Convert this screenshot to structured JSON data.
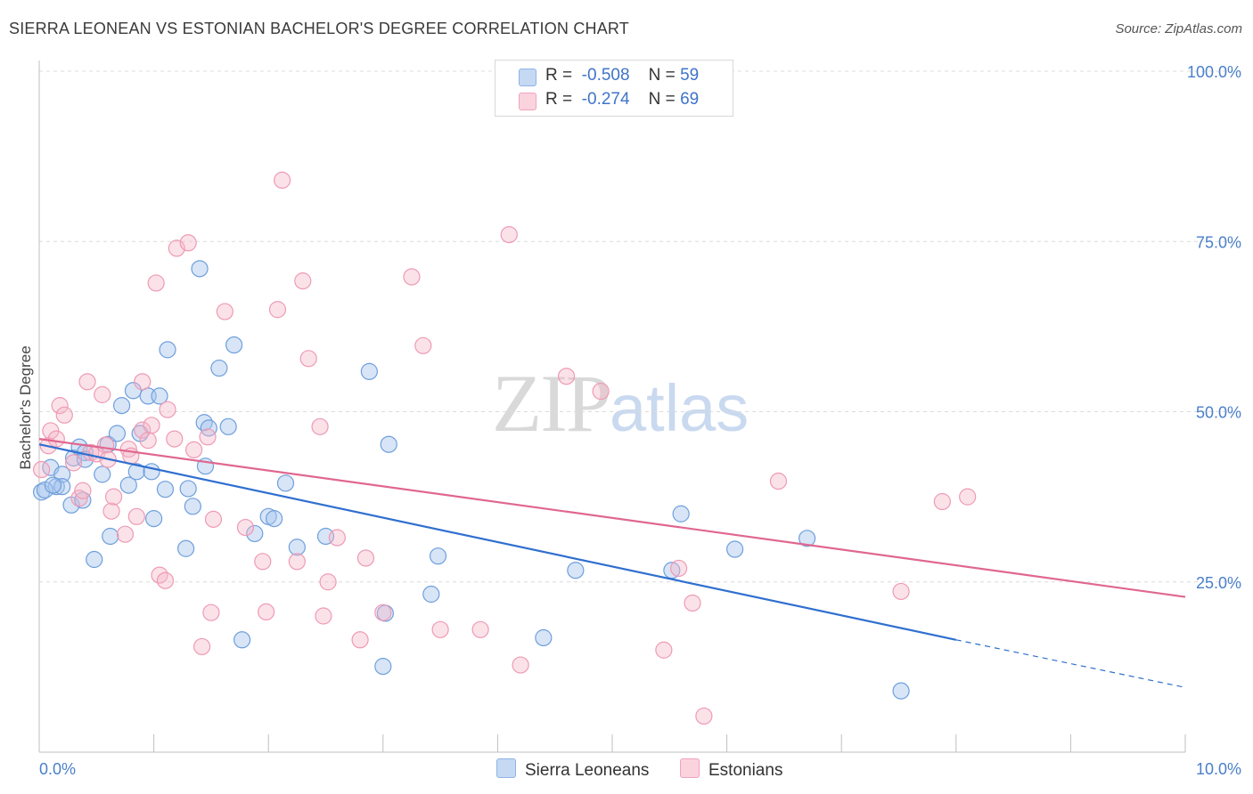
{
  "header": {
    "title": "SIERRA LEONEAN VS ESTONIAN BACHELOR'S DEGREE CORRELATION CHART",
    "source": "Source: ZipAtlas.com"
  },
  "watermark": {
    "zip": "ZIP",
    "atlas": "atlas"
  },
  "legend": {
    "r_label": "R =",
    "n_label": "N =",
    "rows": [
      {
        "r": "-0.508",
        "n": "59",
        "color": "#a8c6ee"
      },
      {
        "r": "-0.274",
        "n": "69",
        "color": "#f4b6c8"
      }
    ]
  },
  "bottom_legend": [
    "Sierra Leoneans",
    "Estonians"
  ],
  "chart_data": {
    "type": "scatter",
    "title": "SIERRA LEONEAN VS ESTONIAN BACHELOR'S DEGREE CORRELATION CHART",
    "xlabel": "",
    "ylabel": "Bachelor's Degree",
    "xlim": [
      0,
      10
    ],
    "ylim": [
      0,
      100
    ],
    "x_tick_labels": [
      "0.0%",
      "10.0%"
    ],
    "y_ticks": [
      25,
      50,
      75,
      100
    ],
    "y_tick_labels": [
      "25.0%",
      "50.0%",
      "75.0%",
      "100.0%"
    ],
    "grid": true,
    "colors": {
      "blue": "#6e9fdc",
      "blue_line": "#2f6fcf",
      "pink": "#ee9ab5",
      "pink_line": "#e0678f"
    },
    "series": [
      {
        "name": "Sierra Leoneans",
        "color": "blue",
        "points": [
          [
            0.02,
            38.2
          ],
          [
            0.1,
            41.8
          ],
          [
            0.15,
            39.0
          ],
          [
            0.2,
            40.8
          ],
          [
            0.2,
            39.0
          ],
          [
            0.28,
            36.3
          ],
          [
            0.3,
            43.2
          ],
          [
            0.35,
            44.8
          ],
          [
            0.38,
            37.0
          ],
          [
            0.4,
            44.0
          ],
          [
            0.4,
            43.0
          ],
          [
            0.48,
            28.3
          ],
          [
            0.55,
            40.8
          ],
          [
            0.6,
            45.2
          ],
          [
            0.62,
            31.7
          ],
          [
            0.68,
            46.8
          ],
          [
            0.72,
            50.9
          ],
          [
            0.78,
            39.2
          ],
          [
            0.82,
            53.1
          ],
          [
            0.85,
            41.2
          ],
          [
            0.88,
            46.8
          ],
          [
            0.95,
            52.3
          ],
          [
            0.98,
            41.2
          ],
          [
            1.0,
            34.3
          ],
          [
            1.05,
            52.3
          ],
          [
            1.1,
            38.6
          ],
          [
            1.12,
            59.1
          ],
          [
            1.28,
            29.9
          ],
          [
            1.3,
            38.7
          ],
          [
            1.34,
            36.1
          ],
          [
            1.4,
            71.0
          ],
          [
            1.44,
            48.4
          ],
          [
            1.45,
            42.0
          ],
          [
            1.48,
            47.6
          ],
          [
            1.57,
            56.4
          ],
          [
            1.65,
            47.8
          ],
          [
            1.7,
            59.8
          ],
          [
            1.77,
            16.5
          ],
          [
            1.88,
            32.1
          ],
          [
            2.0,
            34.6
          ],
          [
            2.05,
            34.3
          ],
          [
            2.15,
            39.5
          ],
          [
            2.25,
            30.1
          ],
          [
            2.5,
            31.7
          ],
          [
            2.88,
            55.9
          ],
          [
            3.0,
            12.6
          ],
          [
            3.02,
            20.4
          ],
          [
            3.05,
            45.2
          ],
          [
            3.42,
            23.2
          ],
          [
            3.48,
            28.8
          ],
          [
            4.4,
            16.8
          ],
          [
            4.68,
            26.7
          ],
          [
            5.52,
            26.7
          ],
          [
            5.6,
            35.0
          ],
          [
            6.07,
            29.8
          ],
          [
            6.7,
            31.4
          ],
          [
            7.52,
            9.0
          ],
          [
            0.05,
            38.5
          ],
          [
            0.12,
            39.2
          ]
        ]
      },
      {
        "name": "Estonians",
        "color": "pink",
        "points": [
          [
            0.02,
            41.5
          ],
          [
            0.08,
            45.0
          ],
          [
            0.1,
            47.2
          ],
          [
            0.15,
            46.0
          ],
          [
            0.18,
            50.9
          ],
          [
            0.22,
            49.5
          ],
          [
            0.3,
            42.5
          ],
          [
            0.35,
            37.3
          ],
          [
            0.38,
            38.4
          ],
          [
            0.42,
            54.4
          ],
          [
            0.45,
            44.0
          ],
          [
            0.5,
            43.8
          ],
          [
            0.55,
            52.5
          ],
          [
            0.58,
            45.1
          ],
          [
            0.6,
            43.0
          ],
          [
            0.63,
            35.4
          ],
          [
            0.65,
            37.5
          ],
          [
            0.75,
            32.0
          ],
          [
            0.78,
            44.5
          ],
          [
            0.8,
            43.5
          ],
          [
            0.85,
            34.6
          ],
          [
            0.9,
            54.4
          ],
          [
            0.9,
            47.3
          ],
          [
            0.95,
            45.8
          ],
          [
            0.98,
            48.0
          ],
          [
            1.02,
            68.9
          ],
          [
            1.05,
            26.0
          ],
          [
            1.1,
            25.2
          ],
          [
            1.12,
            50.3
          ],
          [
            1.18,
            46.0
          ],
          [
            1.2,
            74.0
          ],
          [
            1.3,
            74.8
          ],
          [
            1.35,
            44.4
          ],
          [
            1.42,
            15.5
          ],
          [
            1.47,
            46.3
          ],
          [
            1.5,
            20.5
          ],
          [
            1.52,
            34.2
          ],
          [
            1.62,
            64.7
          ],
          [
            1.8,
            33.0
          ],
          [
            1.95,
            28.0
          ],
          [
            1.98,
            20.6
          ],
          [
            2.08,
            65.0
          ],
          [
            2.12,
            84.0
          ],
          [
            2.25,
            28.0
          ],
          [
            2.3,
            69.2
          ],
          [
            2.35,
            57.8
          ],
          [
            2.45,
            47.8
          ],
          [
            2.48,
            20.0
          ],
          [
            2.52,
            25.0
          ],
          [
            2.6,
            31.5
          ],
          [
            2.8,
            16.5
          ],
          [
            2.85,
            28.5
          ],
          [
            3.0,
            20.5
          ],
          [
            3.25,
            69.8
          ],
          [
            3.35,
            59.7
          ],
          [
            3.5,
            18.0
          ],
          [
            3.85,
            18.0
          ],
          [
            4.1,
            76.0
          ],
          [
            4.2,
            12.8
          ],
          [
            4.6,
            55.2
          ],
          [
            4.9,
            53.0
          ],
          [
            5.45,
            15.0
          ],
          [
            5.58,
            27.0
          ],
          [
            5.7,
            21.9
          ],
          [
            5.8,
            5.3
          ],
          [
            6.45,
            39.8
          ],
          [
            7.52,
            23.6
          ],
          [
            7.88,
            36.8
          ],
          [
            8.1,
            37.5
          ]
        ]
      }
    ],
    "trendlines": [
      {
        "series": "Sierra Leoneans",
        "x0": 0.0,
        "y0": 45.2,
        "x1": 8.0,
        "y1": 16.5,
        "dash_to_x": 10.0,
        "dash_to_y": 9.5
      },
      {
        "series": "Estonians",
        "x0": 0.0,
        "y0": 46.0,
        "x1": 10.0,
        "y1": 22.8
      }
    ]
  }
}
